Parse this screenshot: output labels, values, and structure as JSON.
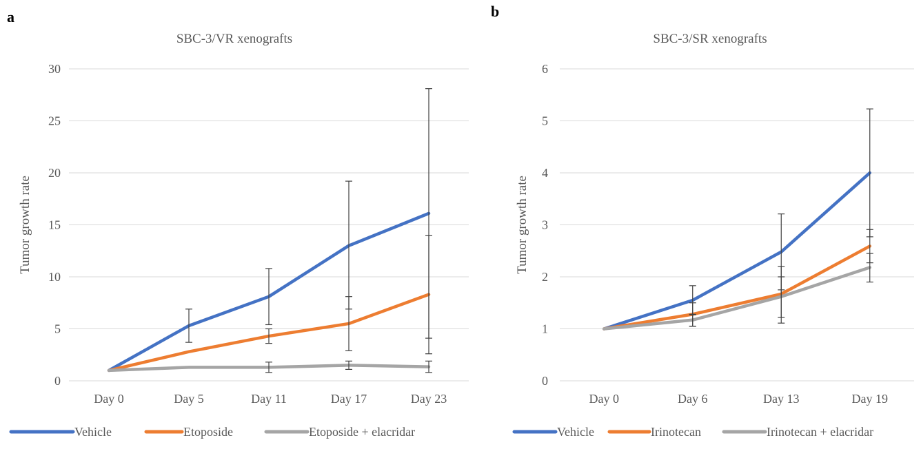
{
  "panels": [
    {
      "letter": "a"
    },
    {
      "letter": "b"
    }
  ],
  "chart_data": [
    {
      "type": "line",
      "title": "SBC-3/VR xenografts",
      "xlabel": "",
      "ylabel": "Tumor growth rate",
      "categories": [
        "Day 0",
        "Day 5",
        "Day 11",
        "Day 17",
        "Day 23"
      ],
      "ylim": [
        0,
        30
      ],
      "yticks": [
        0,
        5,
        10,
        15,
        20,
        25,
        30
      ],
      "grid": true,
      "legend_position": "bottom",
      "series": [
        {
          "name": "Vehicle",
          "color": "#4472c4",
          "values": [
            1,
            5.3,
            8.1,
            13.0,
            16.1
          ],
          "err_low": [
            1,
            3.7,
            5.4,
            6.9,
            4.1
          ],
          "err_high": [
            1,
            6.9,
            10.8,
            19.2,
            28.1
          ]
        },
        {
          "name": "Etoposide",
          "color": "#ed7d31",
          "values": [
            1,
            2.8,
            4.3,
            5.5,
            8.3
          ],
          "err_low": [
            1,
            2.8,
            3.6,
            2.9,
            2.6
          ],
          "err_high": [
            1,
            2.8,
            5.0,
            8.1,
            14.0
          ]
        },
        {
          "name": "Etoposide + elacridar",
          "color": "#a5a5a5",
          "values": [
            1,
            1.3,
            1.3,
            1.5,
            1.35
          ],
          "err_low": [
            1,
            1.3,
            0.8,
            1.1,
            0.8
          ],
          "err_high": [
            1,
            1.3,
            1.8,
            1.9,
            1.9
          ]
        }
      ]
    },
    {
      "type": "line",
      "title": "SBC-3/SR xenografts",
      "xlabel": "",
      "ylabel": "Tumor growth rate",
      "categories": [
        "Day 0",
        "Day 6",
        "Day 13",
        "Day 19"
      ],
      "ylim": [
        0,
        6
      ],
      "yticks": [
        0,
        1,
        2,
        3,
        4,
        5,
        6
      ],
      "grid": true,
      "legend_position": "bottom",
      "series": [
        {
          "name": "Vehicle",
          "color": "#4472c4",
          "values": [
            1,
            1.55,
            2.48,
            4.0
          ],
          "err_low": [
            1,
            1.27,
            1.75,
            2.77
          ],
          "err_high": [
            1,
            1.83,
            3.21,
            5.23
          ]
        },
        {
          "name": "Irinotecan",
          "color": "#ed7d31",
          "values": [
            1,
            1.28,
            1.67,
            2.59
          ],
          "err_low": [
            1,
            1.05,
            1.22,
            2.27
          ],
          "err_high": [
            1,
            1.5,
            2.0,
            2.91
          ]
        },
        {
          "name": "Irinotecan + elacridar",
          "color": "#a5a5a5",
          "values": [
            1,
            1.17,
            1.62,
            2.18
          ],
          "err_low": [
            1,
            1.05,
            1.11,
            1.9
          ],
          "err_high": [
            1,
            1.28,
            2.2,
            2.45
          ]
        }
      ]
    }
  ]
}
